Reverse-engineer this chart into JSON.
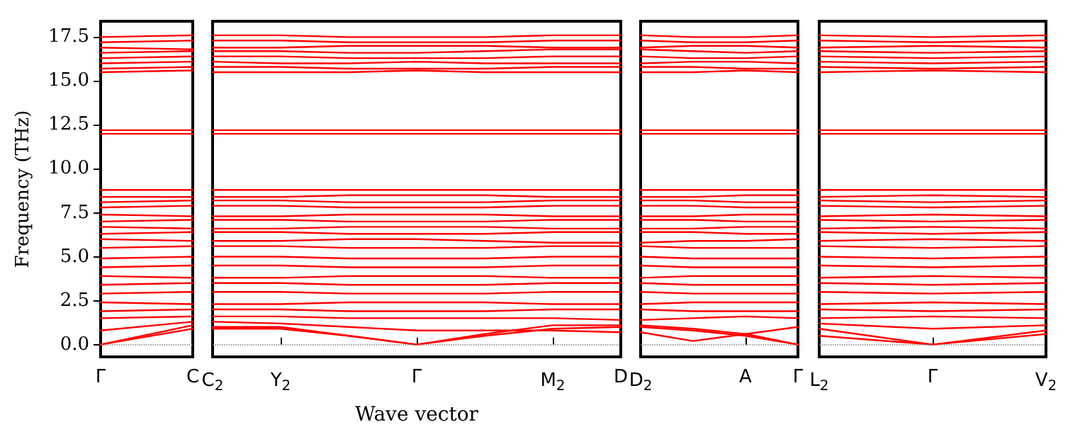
{
  "chart_data": [
    {
      "type": "line",
      "ylabel": "Frequency (THz)",
      "categories": [
        "Γ",
        "C"
      ],
      "ylim": [
        -0.7,
        18.4
      ],
      "yticks": [
        {
          "value": 0,
          "label": "0.0"
        },
        {
          "value": 2.5,
          "label": "2.5"
        },
        {
          "value": 5,
          "label": "5.0"
        },
        {
          "value": 7.5,
          "label": "7.5"
        },
        {
          "value": 10,
          "label": "10.0"
        },
        {
          "value": 12.5,
          "label": "12.5"
        },
        {
          "value": 15,
          "label": "15.0"
        },
        {
          "value": 17.5,
          "label": "17.5"
        }
      ],
      "marker": "none",
      "ref_lines": [
        {
          "axis": "y",
          "value": 0,
          "color": "#808080",
          "line_style": "dotted"
        }
      ],
      "series": [
        {
          "color": "#ff0000",
          "values": [
            15.5,
            15.6
          ]
        },
        {
          "color": "#ff0000",
          "values": [
            15.7,
            15.8
          ]
        },
        {
          "color": "#ff0000",
          "values": [
            16.0,
            16.1
          ]
        },
        {
          "color": "#ff0000",
          "values": [
            16.3,
            16.4
          ]
        },
        {
          "color": "#ff0000",
          "values": [
            16.6,
            16.7
          ]
        },
        {
          "color": "#ff0000",
          "values": [
            16.9,
            16.8
          ]
        },
        {
          "color": "#ff0000",
          "values": [
            17.2,
            17.3
          ]
        },
        {
          "color": "#ff0000",
          "values": [
            17.5,
            17.6
          ]
        },
        {
          "color": "#ff0000",
          "values": [
            12.0,
            12.0
          ]
        },
        {
          "color": "#ff0000",
          "values": [
            12.2,
            12.2
          ]
        },
        {
          "color": "#ff0000",
          "values": [
            6.0,
            5.9
          ]
        },
        {
          "color": "#ff0000",
          "values": [
            6.3,
            6.4
          ]
        },
        {
          "color": "#ff0000",
          "values": [
            6.7,
            6.6
          ]
        },
        {
          "color": "#ff0000",
          "values": [
            7.0,
            7.1
          ]
        },
        {
          "color": "#ff0000",
          "values": [
            7.4,
            7.3
          ]
        },
        {
          "color": "#ff0000",
          "values": [
            7.8,
            7.9
          ]
        },
        {
          "color": "#ff0000",
          "values": [
            8.1,
            8.2
          ]
        },
        {
          "color": "#ff0000",
          "values": [
            8.4,
            8.4
          ]
        },
        {
          "color": "#ff0000",
          "values": [
            8.8,
            8.8
          ]
        },
        {
          "color": "#ff0000",
          "values": [
            0,
            0.9
          ]
        },
        {
          "color": "#ff0000",
          "values": [
            0,
            1.1
          ]
        },
        {
          "color": "#ff0000",
          "values": [
            0.8,
            1.3
          ]
        },
        {
          "color": "#ff0000",
          "values": [
            1.5,
            1.6
          ]
        },
        {
          "color": "#ff0000",
          "values": [
            1.9,
            2.0
          ]
        },
        {
          "color": "#ff0000",
          "values": [
            2.4,
            2.3
          ]
        },
        {
          "color": "#ff0000",
          "values": [
            2.9,
            3.0
          ]
        },
        {
          "color": "#ff0000",
          "values": [
            3.4,
            3.5
          ]
        },
        {
          "color": "#ff0000",
          "values": [
            3.9,
            3.8
          ]
        },
        {
          "color": "#ff0000",
          "values": [
            4.4,
            4.5
          ]
        },
        {
          "color": "#ff0000",
          "values": [
            4.9,
            5.0
          ]
        },
        {
          "color": "#ff0000",
          "values": [
            5.5,
            5.6
          ]
        }
      ]
    },
    {
      "type": "line",
      "xlabel": "Wave vector",
      "categories": [
        "C$_{2}$",
        "Y$_{2}$",
        null,
        "Γ",
        null,
        "M$_{2}$",
        "D"
      ],
      "ylim": [
        -0.7,
        18.4
      ],
      "tick_labels": "x",
      "marker": "none",
      "ref_lines": [
        {
          "axis": "y",
          "value": 0,
          "color": "#808080",
          "line_style": "dotted"
        }
      ],
      "series": [
        {
          "color": "#ff0000",
          "values": [
            15.5,
            15.5,
            15.5,
            15.6,
            15.5,
            15.5,
            15.5
          ]
        },
        {
          "color": "#ff0000",
          "values": [
            15.8,
            15.8,
            15.7,
            15.7,
            15.7,
            15.8,
            15.8
          ]
        },
        {
          "color": "#ff0000",
          "values": [
            16.1,
            16.0,
            16.0,
            16.1,
            16.0,
            16.0,
            16.0
          ]
        },
        {
          "color": "#ff0000",
          "values": [
            16.4,
            16.4,
            16.3,
            16.3,
            16.3,
            16.4,
            16.4
          ]
        },
        {
          "color": "#ff0000",
          "values": [
            16.7,
            16.7,
            16.6,
            16.6,
            16.7,
            16.8,
            16.8
          ]
        },
        {
          "color": "#ff0000",
          "values": [
            16.9,
            16.9,
            17.0,
            17.0,
            17.0,
            16.9,
            16.9
          ]
        },
        {
          "color": "#ff0000",
          "values": [
            17.3,
            17.3,
            17.2,
            17.2,
            17.2,
            17.3,
            17.3
          ]
        },
        {
          "color": "#ff0000",
          "values": [
            17.6,
            17.6,
            17.5,
            17.5,
            17.5,
            17.6,
            17.6
          ]
        },
        {
          "color": "#ff0000",
          "values": [
            12.0,
            12.0,
            12.0,
            12.0,
            12.0,
            12.0,
            12.0
          ]
        },
        {
          "color": "#ff0000",
          "values": [
            12.2,
            12.2,
            12.2,
            12.2,
            12.2,
            12.2,
            12.2
          ]
        },
        {
          "color": "#ff0000",
          "values": [
            5.9,
            5.9,
            6.0,
            6.0,
            5.9,
            5.8,
            5.8
          ]
        },
        {
          "color": "#ff0000",
          "values": [
            6.4,
            6.4,
            6.3,
            6.3,
            6.3,
            6.4,
            6.4
          ]
        },
        {
          "color": "#ff0000",
          "values": [
            6.6,
            6.6,
            6.7,
            6.7,
            6.7,
            6.6,
            6.6
          ]
        },
        {
          "color": "#ff0000",
          "values": [
            7.1,
            7.1,
            7.0,
            7.0,
            7.0,
            7.1,
            7.1
          ]
        },
        {
          "color": "#ff0000",
          "values": [
            7.3,
            7.3,
            7.4,
            7.4,
            7.4,
            7.3,
            7.3
          ]
        },
        {
          "color": "#ff0000",
          "values": [
            7.9,
            7.9,
            7.8,
            7.8,
            7.8,
            7.9,
            7.9
          ]
        },
        {
          "color": "#ff0000",
          "values": [
            8.2,
            8.2,
            8.1,
            8.1,
            8.1,
            8.2,
            8.2
          ]
        },
        {
          "color": "#ff0000",
          "values": [
            8.4,
            8.4,
            8.5,
            8.5,
            8.5,
            8.4,
            8.4
          ]
        },
        {
          "color": "#ff0000",
          "values": [
            8.8,
            8.8,
            8.8,
            8.8,
            8.8,
            8.8,
            8.8
          ]
        },
        {
          "color": "#ff0000",
          "values": [
            0.9,
            0.9,
            0.5,
            0,
            0.5,
            0.9,
            1.0
          ]
        },
        {
          "color": "#ff0000",
          "values": [
            1.0,
            1.0,
            0.5,
            0,
            0.6,
            1.1,
            1.1
          ]
        },
        {
          "color": "#ff0000",
          "values": [
            1.3,
            1.2,
            1.0,
            0.8,
            0.8,
            0.8,
            0.7
          ]
        },
        {
          "color": "#ff0000",
          "values": [
            1.6,
            1.6,
            1.5,
            1.5,
            1.5,
            1.5,
            1.4
          ]
        },
        {
          "color": "#ff0000",
          "values": [
            2.0,
            2.0,
            1.9,
            1.9,
            1.9,
            2.0,
            2.0
          ]
        },
        {
          "color": "#ff0000",
          "values": [
            2.3,
            2.3,
            2.4,
            2.4,
            2.4,
            2.3,
            2.3
          ]
        },
        {
          "color": "#ff0000",
          "values": [
            3.0,
            3.0,
            2.9,
            2.9,
            2.9,
            3.0,
            3.0
          ]
        },
        {
          "color": "#ff0000",
          "values": [
            3.5,
            3.5,
            3.4,
            3.4,
            3.4,
            3.5,
            3.5
          ]
        },
        {
          "color": "#ff0000",
          "values": [
            3.8,
            3.8,
            3.9,
            3.9,
            3.9,
            3.8,
            3.8
          ]
        },
        {
          "color": "#ff0000",
          "values": [
            4.5,
            4.5,
            4.4,
            4.4,
            4.4,
            4.5,
            4.5
          ]
        },
        {
          "color": "#ff0000",
          "values": [
            5.0,
            5.0,
            4.9,
            4.9,
            4.9,
            5.0,
            5.0
          ]
        },
        {
          "color": "#ff0000",
          "values": [
            5.6,
            5.6,
            5.5,
            5.5,
            5.5,
            5.6,
            5.6
          ]
        }
      ]
    },
    {
      "type": "line",
      "categories": [
        "D$_{2}$",
        null,
        "A",
        "Γ"
      ],
      "ylim": [
        -0.7,
        18.4
      ],
      "tick_labels": "x",
      "marker": "none",
      "ref_lines": [
        {
          "axis": "y",
          "value": 0,
          "color": "#808080",
          "line_style": "dotted"
        }
      ],
      "series": [
        {
          "color": "#ff0000",
          "values": [
            15.5,
            15.5,
            15.6,
            15.5
          ]
        },
        {
          "color": "#ff0000",
          "values": [
            15.8,
            15.8,
            15.7,
            15.7
          ]
        },
        {
          "color": "#ff0000",
          "values": [
            16.0,
            16.1,
            16.1,
            16.0
          ]
        },
        {
          "color": "#ff0000",
          "values": [
            16.4,
            16.3,
            16.3,
            16.4
          ]
        },
        {
          "color": "#ff0000",
          "values": [
            16.8,
            16.7,
            16.6,
            16.7
          ]
        },
        {
          "color": "#ff0000",
          "values": [
            16.9,
            17.0,
            17.0,
            16.9
          ]
        },
        {
          "color": "#ff0000",
          "values": [
            17.3,
            17.2,
            17.2,
            17.3
          ]
        },
        {
          "color": "#ff0000",
          "values": [
            17.6,
            17.5,
            17.5,
            17.6
          ]
        },
        {
          "color": "#ff0000",
          "values": [
            12.0,
            12.0,
            12.0,
            12.0
          ]
        },
        {
          "color": "#ff0000",
          "values": [
            12.2,
            12.2,
            12.2,
            12.2
          ]
        },
        {
          "color": "#ff0000",
          "values": [
            5.8,
            5.9,
            5.9,
            6.0
          ]
        },
        {
          "color": "#ff0000",
          "values": [
            6.4,
            6.4,
            6.3,
            6.3
          ]
        },
        {
          "color": "#ff0000",
          "values": [
            6.6,
            6.6,
            6.7,
            6.7
          ]
        },
        {
          "color": "#ff0000",
          "values": [
            7.1,
            7.1,
            7.0,
            7.0
          ]
        },
        {
          "color": "#ff0000",
          "values": [
            7.3,
            7.3,
            7.4,
            7.4
          ]
        },
        {
          "color": "#ff0000",
          "values": [
            7.9,
            7.9,
            7.8,
            7.8
          ]
        },
        {
          "color": "#ff0000",
          "values": [
            8.2,
            8.2,
            8.1,
            8.1
          ]
        },
        {
          "color": "#ff0000",
          "values": [
            8.4,
            8.4,
            8.5,
            8.5
          ]
        },
        {
          "color": "#ff0000",
          "values": [
            8.8,
            8.8,
            8.8,
            8.8
          ]
        },
        {
          "color": "#ff0000",
          "values": [
            0.7,
            0.2,
            0.6,
            1.0
          ]
        },
        {
          "color": "#ff0000",
          "values": [
            1.0,
            0.8,
            0.5,
            0
          ]
        },
        {
          "color": "#ff0000",
          "values": [
            1.1,
            0.9,
            0.6,
            0
          ]
        },
        {
          "color": "#ff0000",
          "values": [
            1.4,
            1.5,
            1.6,
            1.5
          ]
        },
        {
          "color": "#ff0000",
          "values": [
            2.0,
            1.9,
            1.9,
            1.9
          ]
        },
        {
          "color": "#ff0000",
          "values": [
            2.3,
            2.4,
            2.4,
            2.4
          ]
        },
        {
          "color": "#ff0000",
          "values": [
            3.0,
            2.9,
            2.9,
            2.9
          ]
        },
        {
          "color": "#ff0000",
          "values": [
            3.5,
            3.4,
            3.4,
            3.4
          ]
        },
        {
          "color": "#ff0000",
          "values": [
            3.8,
            3.9,
            3.9,
            3.9
          ]
        },
        {
          "color": "#ff0000",
          "values": [
            4.5,
            4.4,
            4.4,
            4.4
          ]
        },
        {
          "color": "#ff0000",
          "values": [
            5.0,
            4.9,
            4.9,
            4.9
          ]
        },
        {
          "color": "#ff0000",
          "values": [
            5.6,
            5.5,
            5.5,
            5.5
          ]
        }
      ]
    },
    {
      "type": "line",
      "categories": [
        "L$_{2}$",
        "Γ",
        "V$_{2}$"
      ],
      "ylim": [
        -0.7,
        18.4
      ],
      "tick_labels": "x",
      "marker": "none",
      "ref_lines": [
        {
          "axis": "y",
          "value": 0,
          "color": "#808080",
          "line_style": "dotted"
        }
      ],
      "series": [
        {
          "color": "#ff0000",
          "values": [
            15.5,
            15.6,
            15.5
          ]
        },
        {
          "color": "#ff0000",
          "values": [
            15.8,
            15.7,
            15.8
          ]
        },
        {
          "color": "#ff0000",
          "values": [
            16.1,
            16.0,
            16.1
          ]
        },
        {
          "color": "#ff0000",
          "values": [
            16.4,
            16.3,
            16.4
          ]
        },
        {
          "color": "#ff0000",
          "values": [
            16.7,
            16.6,
            16.7
          ]
        },
        {
          "color": "#ff0000",
          "values": [
            16.9,
            17.0,
            16.9
          ]
        },
        {
          "color": "#ff0000",
          "values": [
            17.3,
            17.2,
            17.3
          ]
        },
        {
          "color": "#ff0000",
          "values": [
            17.6,
            17.5,
            17.6
          ]
        },
        {
          "color": "#ff0000",
          "values": [
            12.0,
            12.0,
            12.0
          ]
        },
        {
          "color": "#ff0000",
          "values": [
            12.2,
            12.2,
            12.2
          ]
        },
        {
          "color": "#ff0000",
          "values": [
            5.9,
            6.0,
            5.9
          ]
        },
        {
          "color": "#ff0000",
          "values": [
            6.4,
            6.3,
            6.4
          ]
        },
        {
          "color": "#ff0000",
          "values": [
            6.6,
            6.7,
            6.6
          ]
        },
        {
          "color": "#ff0000",
          "values": [
            7.1,
            7.0,
            7.1
          ]
        },
        {
          "color": "#ff0000",
          "values": [
            7.3,
            7.4,
            7.3
          ]
        },
        {
          "color": "#ff0000",
          "values": [
            7.9,
            7.8,
            7.9
          ]
        },
        {
          "color": "#ff0000",
          "values": [
            8.2,
            8.1,
            8.2
          ]
        },
        {
          "color": "#ff0000",
          "values": [
            8.4,
            8.5,
            8.4
          ]
        },
        {
          "color": "#ff0000",
          "values": [
            8.8,
            8.8,
            8.8
          ]
        },
        {
          "color": "#ff0000",
          "values": [
            0.5,
            0,
            0.6
          ]
        },
        {
          "color": "#ff0000",
          "values": [
            0.9,
            0,
            0.8
          ]
        },
        {
          "color": "#ff0000",
          "values": [
            1.2,
            0.9,
            1.1
          ]
        },
        {
          "color": "#ff0000",
          "values": [
            1.5,
            1.6,
            1.5
          ]
        },
        {
          "color": "#ff0000",
          "values": [
            2.0,
            1.9,
            2.0
          ]
        },
        {
          "color": "#ff0000",
          "values": [
            2.3,
            2.4,
            2.3
          ]
        },
        {
          "color": "#ff0000",
          "values": [
            3.0,
            2.9,
            3.0
          ]
        },
        {
          "color": "#ff0000",
          "values": [
            3.5,
            3.4,
            3.5
          ]
        },
        {
          "color": "#ff0000",
          "values": [
            3.8,
            3.9,
            3.8
          ]
        },
        {
          "color": "#ff0000",
          "values": [
            4.5,
            4.4,
            4.5
          ]
        },
        {
          "color": "#ff0000",
          "values": [
            5.0,
            4.9,
            5.0
          ]
        },
        {
          "color": "#ff0000",
          "values": [
            5.6,
            5.5,
            5.6
          ]
        }
      ]
    }
  ]
}
